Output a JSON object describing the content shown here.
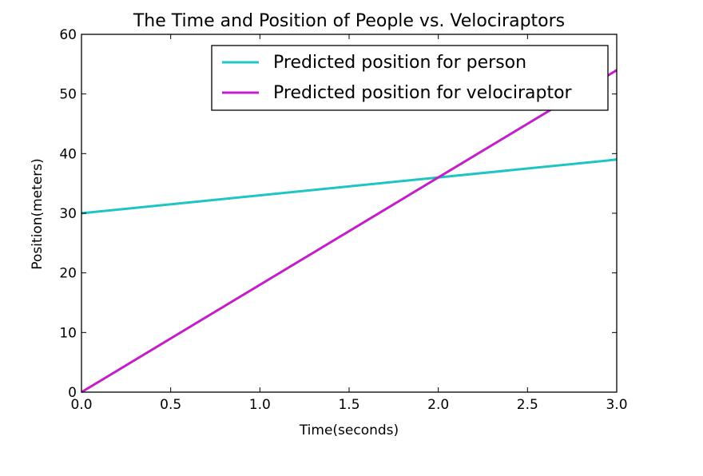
{
  "chart_data": {
    "type": "line",
    "title": "The Time and Position of People vs. Velociraptors",
    "xlabel": "Time(seconds)",
    "ylabel": "Position(meters)",
    "xlim": [
      0.0,
      3.0
    ],
    "ylim": [
      0,
      60
    ],
    "xticks": [
      0.0,
      0.5,
      1.0,
      1.5,
      2.0,
      2.5,
      3.0
    ],
    "xtick_labels": [
      "0.0",
      "0.5",
      "1.0",
      "1.5",
      "2.0",
      "2.5",
      "3.0"
    ],
    "yticks": [
      0,
      10,
      20,
      30,
      40,
      50,
      60
    ],
    "ytick_labels": [
      "0",
      "10",
      "20",
      "30",
      "40",
      "50",
      "60"
    ],
    "grid": false,
    "legend_position": "top-right",
    "series": [
      {
        "name": "Predicted position for person",
        "color": "#1fc4c4",
        "x": [
          0.0,
          3.0
        ],
        "y": [
          30,
          39
        ]
      },
      {
        "name": "Predicted position for velociraptor",
        "color": "#c21fc9",
        "x": [
          0.0,
          3.0
        ],
        "y": [
          0,
          54
        ]
      }
    ]
  }
}
